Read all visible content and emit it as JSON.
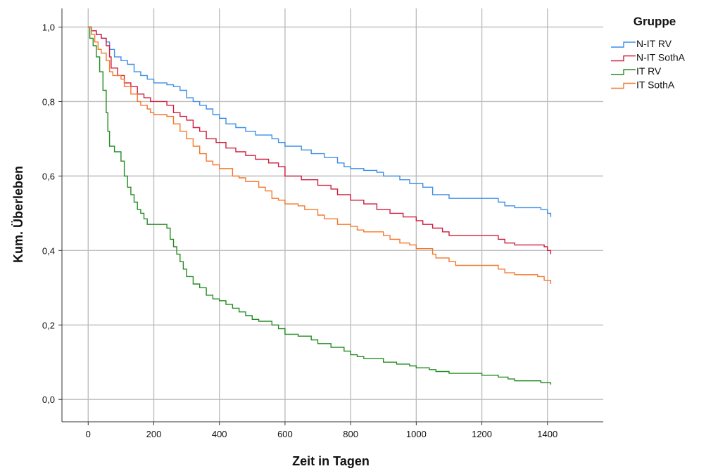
{
  "chart_data": {
    "type": "line",
    "step": true,
    "xlabel": "Zeit in Tagen",
    "ylabel": "Kum. Überleben",
    "xlim": [
      -80,
      1570
    ],
    "ylim": [
      -0.06,
      1.05
    ],
    "x_ticks": [
      0,
      200,
      400,
      600,
      800,
      1000,
      1200,
      1400
    ],
    "x_tick_labels": [
      "0",
      "200",
      "400",
      "600",
      "800",
      "1000",
      "1200",
      "1400"
    ],
    "y_ticks": [
      0.0,
      0.2,
      0.4,
      0.6,
      0.8,
      1.0
    ],
    "y_tick_labels": [
      "0,0",
      "0,2",
      "0,4",
      "0,6",
      "0,8",
      "1,0"
    ],
    "grid": true,
    "legend": {
      "title": "Gruppe",
      "position": "top-right"
    },
    "series": [
      {
        "name": "N-IT RV",
        "color": "#3b8ee8",
        "points": [
          [
            0,
            1.0
          ],
          [
            10,
            0.99
          ],
          [
            25,
            0.98
          ],
          [
            40,
            0.97
          ],
          [
            55,
            0.96
          ],
          [
            65,
            0.94
          ],
          [
            80,
            0.92
          ],
          [
            100,
            0.91
          ],
          [
            120,
            0.9
          ],
          [
            140,
            0.88
          ],
          [
            160,
            0.87
          ],
          [
            180,
            0.86
          ],
          [
            200,
            0.85
          ],
          [
            240,
            0.845
          ],
          [
            260,
            0.84
          ],
          [
            280,
            0.83
          ],
          [
            300,
            0.81
          ],
          [
            320,
            0.8
          ],
          [
            340,
            0.79
          ],
          [
            360,
            0.78
          ],
          [
            380,
            0.765
          ],
          [
            400,
            0.755
          ],
          [
            420,
            0.74
          ],
          [
            450,
            0.73
          ],
          [
            480,
            0.72
          ],
          [
            510,
            0.71
          ],
          [
            560,
            0.7
          ],
          [
            580,
            0.69
          ],
          [
            600,
            0.68
          ],
          [
            650,
            0.67
          ],
          [
            680,
            0.66
          ],
          [
            720,
            0.65
          ],
          [
            760,
            0.635
          ],
          [
            780,
            0.625
          ],
          [
            800,
            0.62
          ],
          [
            840,
            0.615
          ],
          [
            880,
            0.61
          ],
          [
            900,
            0.6
          ],
          [
            950,
            0.59
          ],
          [
            980,
            0.58
          ],
          [
            1020,
            0.57
          ],
          [
            1050,
            0.55
          ],
          [
            1100,
            0.54
          ],
          [
            1250,
            0.53
          ],
          [
            1270,
            0.52
          ],
          [
            1300,
            0.515
          ],
          [
            1380,
            0.51
          ],
          [
            1400,
            0.5
          ],
          [
            1410,
            0.49
          ]
        ]
      },
      {
        "name": "N-IT SothA",
        "color": "#d01c3c",
        "points": [
          [
            0,
            1.0
          ],
          [
            10,
            0.99
          ],
          [
            25,
            0.98
          ],
          [
            40,
            0.97
          ],
          [
            55,
            0.95
          ],
          [
            65,
            0.92
          ],
          [
            70,
            0.89
          ],
          [
            90,
            0.87
          ],
          [
            110,
            0.85
          ],
          [
            130,
            0.84
          ],
          [
            150,
            0.82
          ],
          [
            170,
            0.81
          ],
          [
            190,
            0.8
          ],
          [
            240,
            0.79
          ],
          [
            260,
            0.77
          ],
          [
            280,
            0.76
          ],
          [
            300,
            0.75
          ],
          [
            320,
            0.73
          ],
          [
            340,
            0.72
          ],
          [
            360,
            0.7
          ],
          [
            390,
            0.69
          ],
          [
            420,
            0.675
          ],
          [
            450,
            0.665
          ],
          [
            480,
            0.655
          ],
          [
            510,
            0.645
          ],
          [
            550,
            0.635
          ],
          [
            580,
            0.625
          ],
          [
            600,
            0.6
          ],
          [
            650,
            0.59
          ],
          [
            700,
            0.575
          ],
          [
            740,
            0.565
          ],
          [
            760,
            0.55
          ],
          [
            800,
            0.535
          ],
          [
            840,
            0.525
          ],
          [
            880,
            0.51
          ],
          [
            920,
            0.5
          ],
          [
            960,
            0.49
          ],
          [
            1000,
            0.48
          ],
          [
            1020,
            0.47
          ],
          [
            1050,
            0.46
          ],
          [
            1080,
            0.45
          ],
          [
            1100,
            0.44
          ],
          [
            1250,
            0.43
          ],
          [
            1270,
            0.42
          ],
          [
            1300,
            0.415
          ],
          [
            1390,
            0.41
          ],
          [
            1400,
            0.4
          ],
          [
            1410,
            0.39
          ]
        ]
      },
      {
        "name": "IT RV",
        "color": "#248c24",
        "points": [
          [
            0,
            1.0
          ],
          [
            5,
            0.97
          ],
          [
            15,
            0.95
          ],
          [
            25,
            0.92
          ],
          [
            35,
            0.88
          ],
          [
            45,
            0.83
          ],
          [
            55,
            0.77
          ],
          [
            60,
            0.72
          ],
          [
            65,
            0.68
          ],
          [
            80,
            0.665
          ],
          [
            100,
            0.64
          ],
          [
            110,
            0.6
          ],
          [
            120,
            0.57
          ],
          [
            130,
            0.55
          ],
          [
            140,
            0.53
          ],
          [
            150,
            0.51
          ],
          [
            160,
            0.5
          ],
          [
            170,
            0.485
          ],
          [
            180,
            0.47
          ],
          [
            240,
            0.46
          ],
          [
            250,
            0.43
          ],
          [
            260,
            0.41
          ],
          [
            270,
            0.39
          ],
          [
            280,
            0.37
          ],
          [
            290,
            0.35
          ],
          [
            300,
            0.33
          ],
          [
            320,
            0.31
          ],
          [
            340,
            0.3
          ],
          [
            360,
            0.28
          ],
          [
            380,
            0.27
          ],
          [
            400,
            0.265
          ],
          [
            420,
            0.255
          ],
          [
            440,
            0.245
          ],
          [
            460,
            0.235
          ],
          [
            480,
            0.225
          ],
          [
            500,
            0.215
          ],
          [
            520,
            0.21
          ],
          [
            560,
            0.2
          ],
          [
            580,
            0.19
          ],
          [
            600,
            0.175
          ],
          [
            640,
            0.17
          ],
          [
            680,
            0.16
          ],
          [
            700,
            0.15
          ],
          [
            740,
            0.14
          ],
          [
            780,
            0.13
          ],
          [
            800,
            0.12
          ],
          [
            820,
            0.115
          ],
          [
            840,
            0.11
          ],
          [
            900,
            0.1
          ],
          [
            940,
            0.095
          ],
          [
            980,
            0.09
          ],
          [
            1000,
            0.085
          ],
          [
            1040,
            0.08
          ],
          [
            1060,
            0.075
          ],
          [
            1100,
            0.07
          ],
          [
            1200,
            0.065
          ],
          [
            1250,
            0.06
          ],
          [
            1280,
            0.055
          ],
          [
            1300,
            0.05
          ],
          [
            1380,
            0.045
          ],
          [
            1410,
            0.04
          ]
        ]
      },
      {
        "name": "IT SothA",
        "color": "#f5772a",
        "points": [
          [
            0,
            1.0
          ],
          [
            10,
            0.98
          ],
          [
            20,
            0.96
          ],
          [
            30,
            0.94
          ],
          [
            40,
            0.93
          ],
          [
            55,
            0.91
          ],
          [
            65,
            0.88
          ],
          [
            75,
            0.87
          ],
          [
            100,
            0.86
          ],
          [
            110,
            0.84
          ],
          [
            130,
            0.82
          ],
          [
            150,
            0.8
          ],
          [
            160,
            0.79
          ],
          [
            180,
            0.78
          ],
          [
            190,
            0.77
          ],
          [
            200,
            0.765
          ],
          [
            240,
            0.76
          ],
          [
            260,
            0.74
          ],
          [
            280,
            0.72
          ],
          [
            300,
            0.7
          ],
          [
            320,
            0.68
          ],
          [
            340,
            0.66
          ],
          [
            360,
            0.64
          ],
          [
            380,
            0.63
          ],
          [
            400,
            0.62
          ],
          [
            440,
            0.6
          ],
          [
            460,
            0.595
          ],
          [
            480,
            0.585
          ],
          [
            520,
            0.57
          ],
          [
            540,
            0.56
          ],
          [
            560,
            0.54
          ],
          [
            580,
            0.535
          ],
          [
            600,
            0.525
          ],
          [
            640,
            0.52
          ],
          [
            660,
            0.51
          ],
          [
            700,
            0.495
          ],
          [
            720,
            0.485
          ],
          [
            760,
            0.47
          ],
          [
            800,
            0.465
          ],
          [
            820,
            0.455
          ],
          [
            840,
            0.45
          ],
          [
            900,
            0.44
          ],
          [
            920,
            0.43
          ],
          [
            950,
            0.42
          ],
          [
            980,
            0.415
          ],
          [
            1000,
            0.405
          ],
          [
            1050,
            0.39
          ],
          [
            1060,
            0.38
          ],
          [
            1100,
            0.37
          ],
          [
            1120,
            0.36
          ],
          [
            1250,
            0.35
          ],
          [
            1270,
            0.34
          ],
          [
            1300,
            0.335
          ],
          [
            1370,
            0.33
          ],
          [
            1390,
            0.32
          ],
          [
            1410,
            0.31
          ]
        ]
      }
    ]
  }
}
